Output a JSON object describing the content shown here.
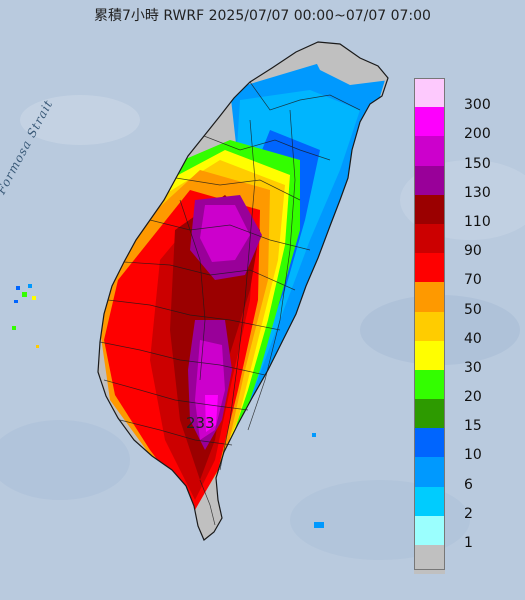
{
  "title": "累積7小時 RWRF 2025/07/07 00:00~07/07 07:00",
  "strait_label": "Formosa Strait",
  "max_value_label": "233",
  "legend": {
    "labels": [
      "300",
      "200",
      "150",
      "130",
      "110",
      "90",
      "70",
      "50",
      "40",
      "30",
      "20",
      "15",
      "10",
      "6",
      "2",
      "1"
    ],
    "colors": [
      "#fdc9fd",
      "#fd00fd",
      "#cc00cc",
      "#990099",
      "#9b0000",
      "#cc0000",
      "#fe0000",
      "#fe9900",
      "#ffcc00",
      "#fffe00",
      "#33fe00",
      "#2d9a00",
      "#0065fe",
      "#0099fe",
      "#00ccfe",
      "#9bfffe",
      "#c0c0c0"
    ]
  },
  "colors": {
    "sea": "#b7c8de",
    "no_rain": "#c0c0c0"
  }
}
